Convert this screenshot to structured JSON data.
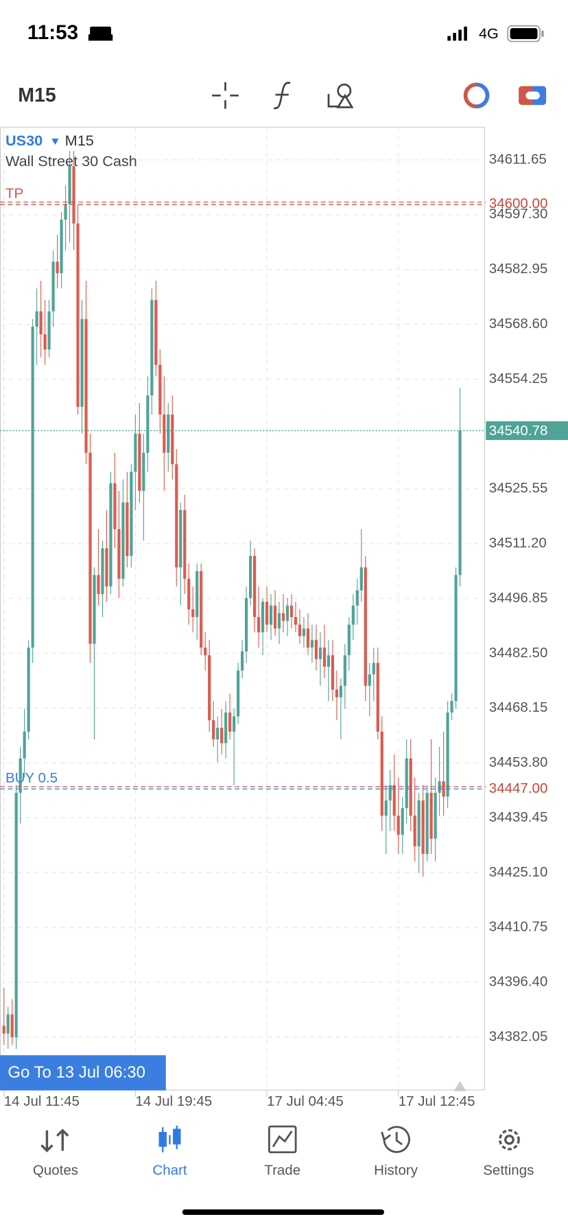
{
  "status_bar": {
    "time": "11:53",
    "network": "4G"
  },
  "toolbar": {
    "timeframe": "M15"
  },
  "chart_data": {
    "type": "candlestick",
    "symbol": "US30",
    "timeframe": "M15",
    "title": "Wall Street 30 Cash",
    "up_color": "#4fa397",
    "down_color": "#dd5a4e",
    "grid": true,
    "xlim": [
      -0.95,
      117.1
    ],
    "ylim": [
      34368.1,
      34620.3
    ],
    "yticks": [
      34611.65,
      {
        "value": 34597.3,
        "label": "34597.30"
      },
      34582.95,
      {
        "value": 34568.6,
        "label": "34568.60"
      },
      34554.25,
      34525.55,
      {
        "value": 34511.2,
        "label": "34511.20"
      },
      34496.85,
      {
        "value": 34482.5,
        "label": "34482.50"
      },
      34468.15,
      {
        "value": 34453.8,
        "label": "34453.80"
      },
      34439.45,
      {
        "value": 34425.1,
        "label": "34425.10"
      },
      34410.75,
      {
        "value": 34396.4,
        "label": "34396.40"
      },
      34382.05
    ],
    "xticks": [
      {
        "value": 0,
        "label": "14 Jul 11:45"
      },
      {
        "value": 32,
        "label": "14 Jul 19:45"
      },
      {
        "value": 64,
        "label": "17 Jul 04:45"
      },
      {
        "value": 96,
        "label": "17 Jul 12:45"
      }
    ],
    "current_price": {
      "value": 34540.78,
      "color": "#4fa397"
    },
    "levels": [
      {
        "name": "TP",
        "value": 34600,
        "label": "34600.00",
        "color": "#d0564a",
        "price_color": "#c7463a"
      },
      {
        "name": "BUY 0.5",
        "value": 34447,
        "label": "34447.00",
        "color": "#3a7ee0",
        "price_color": "#c7463a"
      }
    ],
    "ohlc": [
      [
        34385,
        34395,
        34380,
        34383
      ],
      [
        34383,
        34390,
        34379,
        34388
      ],
      [
        34388,
        34392,
        34380,
        34382
      ],
      [
        34382,
        34448,
        34379,
        34446
      ],
      [
        34446,
        34458,
        34438,
        34455
      ],
      [
        34455,
        34468,
        34450,
        34462
      ],
      [
        34462,
        34486,
        34460,
        34484
      ],
      [
        34484,
        34570,
        34480,
        34568
      ],
      [
        34568,
        34578,
        34558,
        34572
      ],
      [
        34572,
        34580,
        34560,
        34566
      ],
      [
        34566,
        34575,
        34558,
        34562
      ],
      [
        34562,
        34575,
        34560,
        34572
      ],
      [
        34572,
        34588,
        34568,
        34585
      ],
      [
        34585,
        34592,
        34578,
        34582
      ],
      [
        34582,
        34598,
        34578,
        34596
      ],
      [
        34596,
        34605,
        34588,
        34600
      ],
      [
        34600,
        34614,
        34590,
        34610
      ],
      [
        34610,
        34614,
        34588,
        34595
      ],
      [
        34595,
        34600,
        34545,
        34547
      ],
      [
        34547,
        34575,
        34540,
        34570
      ],
      [
        34570,
        34580,
        34532,
        34535
      ],
      [
        34535,
        34540,
        34480,
        34485
      ],
      [
        34485,
        34505,
        34460,
        34503
      ],
      [
        34503,
        34515,
        34495,
        34498
      ],
      [
        34498,
        34512,
        34492,
        34510
      ],
      [
        34510,
        34520,
        34496,
        34500
      ],
      [
        34500,
        34530,
        34498,
        34527
      ],
      [
        34527,
        34535,
        34510,
        34515
      ],
      [
        34515,
        34525,
        34497,
        34502
      ],
      [
        34502,
        34528,
        34500,
        34522
      ],
      [
        34522,
        34530,
        34505,
        34508
      ],
      [
        34508,
        34532,
        34505,
        34530
      ],
      [
        34530,
        34545,
        34520,
        34540
      ],
      [
        34540,
        34548,
        34522,
        34525
      ],
      [
        34525,
        34540,
        34512,
        34535
      ],
      [
        34535,
        34555,
        34530,
        34550
      ],
      [
        34550,
        34578,
        34545,
        34575
      ],
      [
        34575,
        34580,
        34555,
        34558
      ],
      [
        34558,
        34562,
        34540,
        34545
      ],
      [
        34545,
        34555,
        34525,
        34535
      ],
      [
        34535,
        34548,
        34530,
        34545
      ],
      [
        34545,
        34550,
        34528,
        34532
      ],
      [
        34532,
        34536,
        34500,
        34505
      ],
      [
        34505,
        34522,
        34495,
        34520
      ],
      [
        34520,
        34524,
        34498,
        34502
      ],
      [
        34502,
        34506,
        34490,
        34494
      ],
      [
        34494,
        34500,
        34488,
        34492
      ],
      [
        34492,
        34506,
        34486,
        34504
      ],
      [
        34504,
        34506,
        34482,
        34484
      ],
      [
        34484,
        34488,
        34478,
        34482
      ],
      [
        34482,
        34486,
        34462,
        34465
      ],
      [
        34465,
        34470,
        34458,
        34460
      ],
      [
        34460,
        34466,
        34454,
        34463
      ],
      [
        34463,
        34468,
        34456,
        34459
      ],
      [
        34459,
        34470,
        34455,
        34467
      ],
      [
        34467,
        34472,
        34460,
        34462
      ],
      [
        34462,
        34468,
        34448,
        34466
      ],
      [
        34466,
        34480,
        34464,
        34478
      ],
      [
        34478,
        34486,
        34476,
        34483
      ],
      [
        34483,
        34500,
        34480,
        34497
      ],
      [
        34497,
        34512,
        34495,
        34508
      ],
      [
        34508,
        34510,
        34488,
        34492
      ],
      [
        34492,
        34500,
        34484,
        34488
      ],
      [
        34488,
        34497,
        34482,
        34496
      ],
      [
        34496,
        34500,
        34488,
        34490
      ],
      [
        34490,
        34498,
        34486,
        34495
      ],
      [
        34495,
        34499,
        34487,
        34489
      ],
      [
        34489,
        34496,
        34485,
        34493
      ],
      [
        34493,
        34498,
        34488,
        34491
      ],
      [
        34491,
        34497,
        34487,
        34495
      ],
      [
        34495,
        34498,
        34489,
        34492
      ],
      [
        34492,
        34496,
        34488,
        34490
      ],
      [
        34490,
        34494,
        34485,
        34487
      ],
      [
        34487,
        34492,
        34484,
        34489
      ],
      [
        34489,
        34493,
        34482,
        34484
      ],
      [
        34484,
        34490,
        34480,
        34486
      ],
      [
        34486,
        34490,
        34478,
        34481
      ],
      [
        34481,
        34488,
        34474,
        34484
      ],
      [
        34484,
        34490,
        34476,
        34479
      ],
      [
        34479,
        34486,
        34470,
        34482
      ],
      [
        34482,
        34486,
        34470,
        34473
      ],
      [
        34473,
        34478,
        34465,
        34471
      ],
      [
        34471,
        34476,
        34460,
        34474
      ],
      [
        34474,
        34485,
        34468,
        34482
      ],
      [
        34482,
        34492,
        34478,
        34490
      ],
      [
        34490,
        34498,
        34486,
        34495
      ],
      [
        34495,
        34502,
        34490,
        34499
      ],
      [
        34499,
        34515,
        34496,
        34505
      ],
      [
        34505,
        34508,
        34470,
        34474
      ],
      [
        34474,
        34480,
        34466,
        34477
      ],
      [
        34477,
        34484,
        34470,
        34480
      ],
      [
        34480,
        34484,
        34460,
        34462
      ],
      [
        34462,
        34466,
        34436,
        34440
      ],
      [
        34440,
        34448,
        34430,
        34444
      ],
      [
        34444,
        34452,
        34436,
        34448
      ],
      [
        34448,
        34456,
        34436,
        34440
      ],
      [
        34440,
        34450,
        34430,
        34435
      ],
      [
        34435,
        34445,
        34430,
        34442
      ],
      [
        34442,
        34460,
        34438,
        34455
      ],
      [
        34455,
        34460,
        34436,
        34440
      ],
      [
        34440,
        34450,
        34428,
        34432
      ],
      [
        34432,
        34446,
        34425,
        34444
      ],
      [
        34444,
        34448,
        34424,
        34430
      ],
      [
        34430,
        34448,
        34428,
        34446
      ],
      [
        34446,
        34460,
        34430,
        34434
      ],
      [
        34434,
        34450,
        34428,
        34446
      ],
      [
        34446,
        34458,
        34440,
        34449
      ],
      [
        34449,
        34462,
        34440,
        34445
      ],
      [
        34445,
        34470,
        34442,
        34467
      ],
      [
        34467,
        34472,
        34465,
        34470
      ],
      [
        34470,
        34505,
        34468,
        34503
      ],
      [
        34503,
        34552,
        34500,
        34540.78
      ]
    ]
  },
  "goto_button": "Go To 13 Jul 06:30",
  "tabs": [
    {
      "label": "Quotes"
    },
    {
      "label": "Chart"
    },
    {
      "label": "Trade"
    },
    {
      "label": "History"
    },
    {
      "label": "Settings"
    }
  ],
  "active_tab": 1
}
